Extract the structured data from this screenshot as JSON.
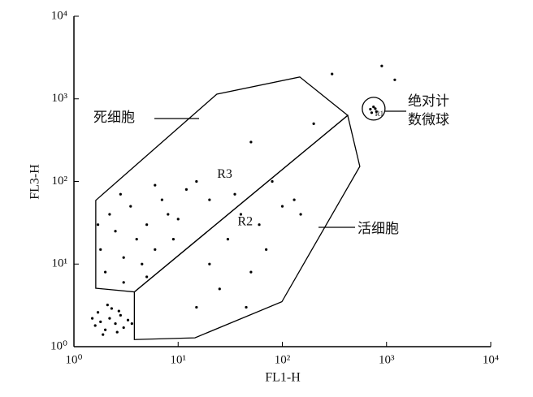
{
  "chart_data": {
    "type": "scatter",
    "x_label": "FL1-H",
    "y_label": "FL3-H",
    "log_x": true,
    "log_y": true,
    "color": "#000000",
    "xlim": [
      1,
      10000
    ],
    "ylim": [
      1,
      10000
    ],
    "xticks": [
      {
        "value": 1,
        "label": "10⁰"
      },
      {
        "value": 10,
        "label": "10¹"
      },
      {
        "value": 100,
        "label": "10²"
      },
      {
        "value": 1000,
        "label": "10³"
      },
      {
        "value": 10000,
        "label": "10⁴"
      }
    ],
    "yticks": [
      {
        "value": 1,
        "label": "10⁰"
      },
      {
        "value": 10,
        "label": "10¹"
      },
      {
        "value": 100,
        "label": "10²"
      },
      {
        "value": 1000,
        "label": "10³"
      },
      {
        "value": 10000,
        "label": "10⁴"
      }
    ],
    "x": [
      1.6,
      1.8,
      2.0,
      2.2,
      2.5,
      2.8,
      3.0,
      1.7,
      2.3,
      2.6,
      3.3,
      1.9,
      2.1,
      2.7,
      3.6,
      1.5,
      2,
      3,
      4,
      5,
      6,
      8,
      2.5,
      3.5,
      1.8,
      7,
      10,
      12,
      4.5,
      2.2,
      6,
      9,
      15,
      3,
      5,
      20,
      1.7,
      2.8,
      20,
      30,
      50,
      40,
      70,
      25,
      60,
      100,
      45,
      15,
      80,
      35,
      150,
      50,
      200,
      300,
      900,
      1200,
      130,
      700,
      750,
      800,
      720,
      780
    ],
    "values": [
      1.8,
      2.0,
      1.6,
      2.2,
      1.9,
      2.4,
      1.7,
      2.6,
      2.9,
      1.5,
      2.1,
      1.4,
      3.2,
      2.7,
      1.9,
      2.2,
      8,
      12,
      20,
      30,
      15,
      40,
      25,
      50,
      15,
      60,
      35,
      80,
      10,
      40,
      90,
      20,
      100,
      6,
      7,
      60,
      30,
      70,
      10,
      20,
      8,
      40,
      15,
      5,
      30,
      50,
      3,
      3,
      100,
      70,
      40,
      300,
      500,
      2000,
      2500,
      1700,
      60,
      750,
      800,
      700,
      680,
      760
    ],
    "gates": [
      {
        "label": "R3",
        "label_at": [
          28,
          120
        ],
        "vertices": [
          [
            1.62,
            59
          ],
          [
            23.5,
            1140
          ],
          [
            147,
            1840
          ],
          [
            424,
            630
          ],
          [
            3.8,
            4.6
          ],
          [
            1.62,
            5.1
          ]
        ]
      },
      {
        "label": "R2",
        "label_at": [
          44,
          32
        ],
        "vertices": [
          [
            3.8,
            4.6
          ],
          [
            424,
            630
          ],
          [
            554,
            152
          ],
          [
            99,
            3.5
          ],
          [
            14.5,
            1.28
          ],
          [
            3.8,
            1.22
          ]
        ]
      }
    ],
    "bead_gate": {
      "label": "R1",
      "center": [
        752,
        760
      ]
    },
    "annotations": {
      "dead": "死细胞",
      "live": "活细胞",
      "beads": [
        "绝对计",
        "数微球"
      ]
    }
  }
}
